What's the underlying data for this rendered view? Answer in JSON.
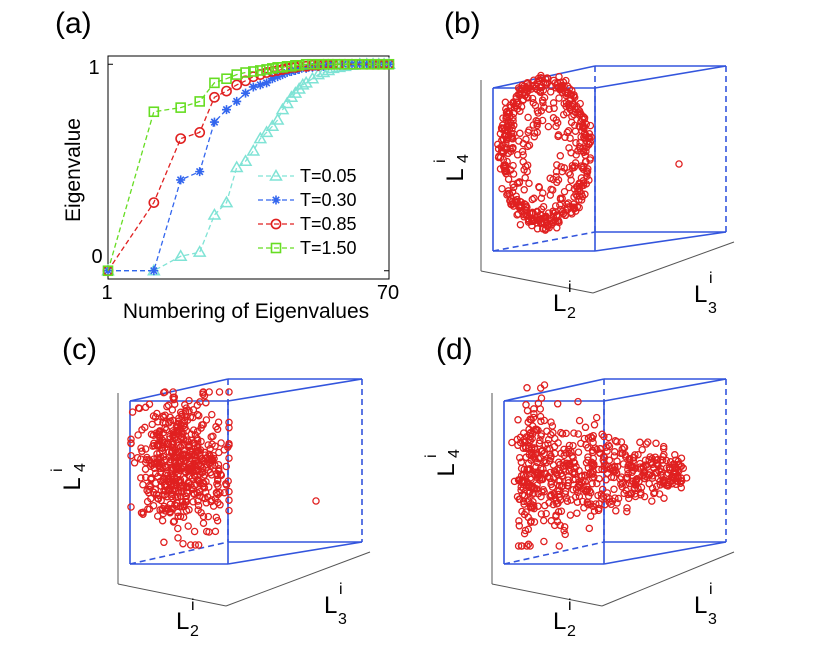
{
  "chart_data": [
    {
      "panel": "(a)",
      "type": "line",
      "xlabel": "Numbering of Eigenvalues",
      "ylabel": "Eigenvalue",
      "x_tick_labels": [
        "1",
        "70"
      ],
      "y_tick_labels": [
        "0",
        "1"
      ],
      "xlim": [
        1,
        70
      ],
      "ylim": [
        -0.04,
        1.04
      ],
      "x_scale": "log",
      "legend_position": "right",
      "series": [
        {
          "name": "T=0.05",
          "color": "#7fe3d5",
          "marker": "triangle",
          "x": [
            1,
            2,
            3,
            4,
            5,
            6,
            7,
            8,
            9,
            10,
            11,
            12,
            13,
            14,
            15,
            16,
            17,
            18,
            19,
            20,
            22,
            24,
            26,
            28,
            30,
            33,
            36,
            40,
            45,
            50,
            55,
            60,
            65,
            70
          ],
          "y": [
            0,
            0,
            0.07,
            0.09,
            0.27,
            0.33,
            0.5,
            0.53,
            0.58,
            0.64,
            0.67,
            0.7,
            0.73,
            0.78,
            0.81,
            0.84,
            0.86,
            0.88,
            0.9,
            0.91,
            0.93,
            0.95,
            0.96,
            0.97,
            0.98,
            0.985,
            0.99,
            0.995,
            1,
            1,
            1,
            1,
            1,
            1
          ]
        },
        {
          "name": "T=0.30",
          "color": "#3366ee",
          "marker": "star",
          "x": [
            1,
            2,
            3,
            4,
            5,
            6,
            7,
            8,
            9,
            10,
            11,
            12,
            13,
            14,
            15,
            16,
            17,
            18,
            20,
            22,
            24,
            26,
            28,
            30,
            35,
            40,
            45,
            50,
            55,
            60,
            65,
            70
          ],
          "y": [
            0,
            0,
            0.44,
            0.48,
            0.72,
            0.78,
            0.82,
            0.86,
            0.89,
            0.9,
            0.91,
            0.93,
            0.94,
            0.95,
            0.96,
            0.965,
            0.97,
            0.975,
            0.98,
            0.985,
            0.99,
            0.99,
            0.995,
            1,
            1,
            1,
            1,
            1,
            1,
            1,
            1,
            1
          ]
        },
        {
          "name": "T=0.85",
          "color": "#e02020",
          "marker": "circle",
          "x": [
            1,
            2,
            3,
            4,
            5,
            6,
            7,
            8,
            9,
            10,
            11,
            12,
            13,
            14,
            15,
            16,
            17,
            18,
            20,
            22,
            24,
            26,
            28,
            30,
            33,
            36,
            40,
            45,
            50,
            55,
            60,
            65,
            70
          ],
          "y": [
            0,
            0.33,
            0.64,
            0.67,
            0.84,
            0.87,
            0.9,
            0.92,
            0.94,
            0.95,
            0.96,
            0.965,
            0.97,
            0.975,
            0.98,
            0.985,
            0.985,
            0.99,
            0.99,
            0.995,
            0.995,
            1,
            1,
            1,
            1,
            1,
            1,
            1,
            1,
            1,
            1,
            1,
            1
          ]
        },
        {
          "name": "T=1.50",
          "color": "#66dd22",
          "marker": "square",
          "x": [
            1,
            2,
            3,
            4,
            5,
            6,
            7,
            8,
            9,
            10,
            11,
            12,
            13,
            14,
            15,
            16,
            17,
            18,
            20,
            22,
            24,
            26,
            28,
            30,
            33,
            36,
            40,
            45,
            50,
            55,
            60,
            65,
            70
          ],
          "y": [
            0,
            0.77,
            0.79,
            0.82,
            0.91,
            0.93,
            0.95,
            0.96,
            0.965,
            0.97,
            0.975,
            0.98,
            0.985,
            0.985,
            0.99,
            0.99,
            0.995,
            0.995,
            1,
            1,
            1,
            1,
            1,
            1,
            1,
            1,
            1,
            1,
            1,
            1,
            1,
            1,
            1
          ]
        }
      ]
    },
    {
      "panel": "(b)",
      "type": "scatter",
      "projection": "3d",
      "axis_labels": {
        "x": {
          "base": "L",
          "sup": "i",
          "sub": "2"
        },
        "y": {
          "base": "L",
          "sup": "i",
          "sub": "3"
        },
        "z": {
          "base": "L",
          "sup": "i",
          "sub": "4"
        }
      },
      "pattern": "ring",
      "point_count": 520,
      "marker": "circle",
      "color": "#e02020",
      "outlier": true
    },
    {
      "panel": "(c)",
      "type": "scatter",
      "projection": "3d",
      "axis_labels": {
        "x": {
          "base": "L",
          "sup": "i",
          "sub": "2"
        },
        "y": {
          "base": "L",
          "sup": "i",
          "sub": "3"
        },
        "z": {
          "base": "L",
          "sup": "i",
          "sub": "4"
        }
      },
      "pattern": "blob",
      "point_count": 560,
      "marker": "circle",
      "color": "#e02020",
      "outlier": true
    },
    {
      "panel": "(d)",
      "type": "scatter",
      "projection": "3d",
      "axis_labels": {
        "x": {
          "base": "L",
          "sup": "i",
          "sub": "2"
        },
        "y": {
          "base": "L",
          "sup": "i",
          "sub": "3"
        },
        "z": {
          "base": "L",
          "sup": "i",
          "sub": "4"
        }
      },
      "pattern": "cone",
      "point_count": 620,
      "marker": "circle",
      "color": "#e02020",
      "outlier": false
    }
  ]
}
